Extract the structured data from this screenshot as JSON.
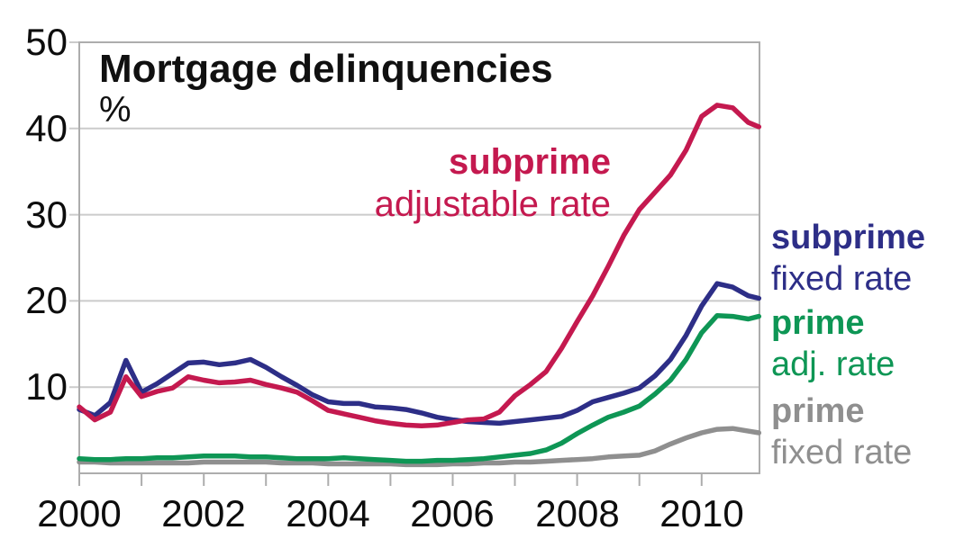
{
  "page": {
    "background": "#ffffff"
  },
  "header": {
    "title": "Mortgage delinquencies",
    "unit": "%"
  },
  "legend": {
    "subprime_arm": {
      "line1": "subprime",
      "line2": "adjustable rate",
      "color": "#C4194F"
    },
    "subprime_fixed": {
      "line1": "subprime",
      "line2": "fixed rate",
      "color": "#2D2E87"
    },
    "prime_arm": {
      "line1": "prime",
      "line2": "adj. rate",
      "color": "#0E9655"
    },
    "prime_fixed": {
      "line1": "prime",
      "line2": "fixed rate",
      "color": "#8F8F8F"
    }
  },
  "axes": {
    "y_ticks": [
      {
        "value": 50,
        "label": "50"
      },
      {
        "value": 40,
        "label": "40"
      },
      {
        "value": 30,
        "label": "30"
      },
      {
        "value": 20,
        "label": "20"
      },
      {
        "value": 10,
        "label": "10"
      }
    ],
    "x_ticks": [
      2000,
      2001,
      2002,
      2003,
      2004,
      2005,
      2006,
      2007,
      2008,
      2009,
      2010
    ],
    "x_tick_labels": [
      {
        "value": 2000,
        "label": "2000"
      },
      {
        "value": 2002,
        "label": "2002"
      },
      {
        "value": 2004,
        "label": "2004"
      },
      {
        "value": 2006,
        "label": "2006"
      },
      {
        "value": 2008,
        "label": "2008"
      },
      {
        "value": 2010,
        "label": "2010"
      }
    ]
  },
  "chart_data": {
    "type": "line",
    "title": "Mortgage delinquencies",
    "xlabel": "",
    "ylabel": "%",
    "x_range": [
      2000,
      2010.93
    ],
    "ylim": [
      0,
      50
    ],
    "grid": "horizontal",
    "legend_position": "right",
    "colors": {
      "grid": "#CBCBCB",
      "border": "#ADADAD",
      "axis_text": "#0d0d0d"
    },
    "x": [
      2000.0,
      2000.25,
      2000.5,
      2000.75,
      2001.0,
      2001.25,
      2001.5,
      2001.75,
      2002.0,
      2002.25,
      2002.5,
      2002.75,
      2003.0,
      2003.25,
      2003.5,
      2003.75,
      2004.0,
      2004.25,
      2004.5,
      2004.75,
      2005.0,
      2005.25,
      2005.5,
      2005.75,
      2006.0,
      2006.25,
      2006.5,
      2006.75,
      2007.0,
      2007.25,
      2007.5,
      2007.75,
      2008.0,
      2008.25,
      2008.5,
      2008.75,
      2009.0,
      2009.25,
      2009.5,
      2009.75,
      2010.0,
      2010.25,
      2010.5,
      2010.75,
      2010.92
    ],
    "series": [
      {
        "name": "subprime adjustable rate",
        "color": "#C4194F",
        "values": [
          7.7,
          6.2,
          7.1,
          11.2,
          8.9,
          9.5,
          9.9,
          11.2,
          10.8,
          10.5,
          10.6,
          10.8,
          10.3,
          9.9,
          9.4,
          8.4,
          7.3,
          6.9,
          6.5,
          6.1,
          5.8,
          5.6,
          5.5,
          5.6,
          5.9,
          6.2,
          6.3,
          7.1,
          9.0,
          10.3,
          11.8,
          14.5,
          17.6,
          20.6,
          24.0,
          27.6,
          30.6,
          32.6,
          34.6,
          37.5,
          41.4,
          42.7,
          42.4,
          40.7,
          40.2
        ]
      },
      {
        "name": "subprime fixed rate",
        "color": "#2D2E87",
        "values": [
          7.4,
          6.7,
          8.2,
          13.1,
          9.4,
          10.4,
          11.6,
          12.8,
          12.9,
          12.6,
          12.8,
          13.2,
          12.3,
          11.2,
          10.2,
          9.1,
          8.3,
          8.1,
          8.1,
          7.7,
          7.6,
          7.4,
          7.0,
          6.5,
          6.2,
          6.0,
          5.9,
          5.8,
          6.0,
          6.2,
          6.4,
          6.6,
          7.3,
          8.3,
          8.8,
          9.3,
          9.9,
          11.3,
          13.2,
          16.0,
          19.4,
          22.0,
          21.6,
          20.6,
          20.3
        ]
      },
      {
        "name": "prime adj. rate",
        "color": "#0E9655",
        "values": [
          1.7,
          1.6,
          1.6,
          1.7,
          1.7,
          1.8,
          1.8,
          1.9,
          2.0,
          2.0,
          2.0,
          1.9,
          1.9,
          1.8,
          1.7,
          1.7,
          1.7,
          1.8,
          1.7,
          1.6,
          1.5,
          1.4,
          1.4,
          1.5,
          1.5,
          1.6,
          1.7,
          1.9,
          2.1,
          2.3,
          2.7,
          3.5,
          4.6,
          5.6,
          6.5,
          7.1,
          7.8,
          9.2,
          10.8,
          13.2,
          16.3,
          18.3,
          18.2,
          17.9,
          18.2
        ]
      },
      {
        "name": "prime fixed rate",
        "color": "#8F8F8F",
        "values": [
          1.3,
          1.3,
          1.2,
          1.2,
          1.2,
          1.2,
          1.2,
          1.2,
          1.3,
          1.3,
          1.3,
          1.3,
          1.3,
          1.2,
          1.2,
          1.2,
          1.1,
          1.1,
          1.1,
          1.1,
          1.1,
          1.0,
          1.0,
          1.0,
          1.1,
          1.1,
          1.2,
          1.2,
          1.3,
          1.3,
          1.4,
          1.5,
          1.6,
          1.7,
          1.9,
          2.0,
          2.1,
          2.6,
          3.4,
          4.1,
          4.7,
          5.1,
          5.2,
          4.9,
          4.7
        ]
      }
    ]
  }
}
